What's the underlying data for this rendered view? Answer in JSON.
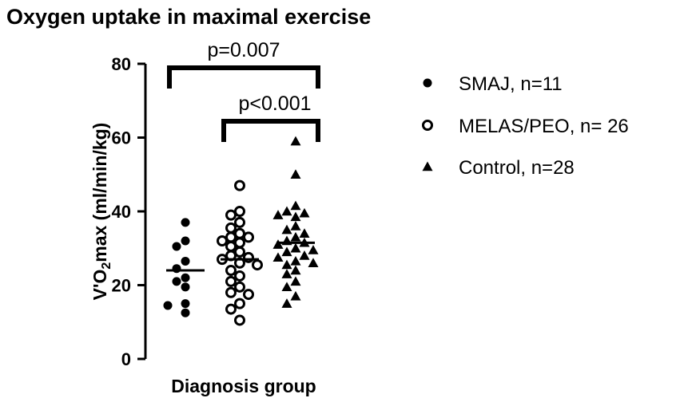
{
  "chart_data": {
    "type": "scatter",
    "title": "Oxygen uptake in maximal exercise",
    "xlabel": "Diagnosis group",
    "ylabel_parts": [
      "V'O",
      "2",
      "max (ml/min/kg)"
    ],
    "ylim": [
      0,
      80
    ],
    "yticks": [
      "0",
      "20",
      "40",
      "60",
      "80"
    ],
    "yticks_values": [
      0,
      20,
      40,
      60,
      80
    ],
    "grid": false,
    "legend_position": "right",
    "series": [
      {
        "name": "SMAJ, n=11",
        "marker": "filled-circle",
        "mean": 24,
        "values": [
          37,
          32,
          30.5,
          26.5,
          24.5,
          22,
          21,
          19.5,
          15,
          14.5,
          12.5
        ]
      },
      {
        "name": "MELAS/PEO, n= 26",
        "marker": "open-circle",
        "mean": 27,
        "values": [
          47,
          40,
          39,
          37,
          35.5,
          34,
          33,
          33,
          32,
          31.5,
          30.5,
          29,
          28,
          27.5,
          27,
          26,
          25.5,
          24,
          22.5,
          21,
          19.5,
          18,
          17.5,
          15,
          13.5,
          10.5
        ]
      },
      {
        "name": "Control, n=28",
        "marker": "filled-triangle",
        "mean": 31.5,
        "values": [
          59,
          50,
          41.5,
          40,
          39.5,
          39,
          38.5,
          36,
          35,
          34,
          33,
          32,
          31.5,
          31,
          30,
          29.5,
          29,
          28,
          27.5,
          26.5,
          26,
          25.5,
          24,
          23,
          21,
          19.5,
          17,
          15
        ]
      }
    ],
    "annotations": [
      {
        "text": "p=0.007",
        "from": 0,
        "to": 2,
        "y": 78.5
      },
      {
        "text": "p<0.001",
        "from": 1,
        "to": 2,
        "y": 64
      }
    ]
  }
}
